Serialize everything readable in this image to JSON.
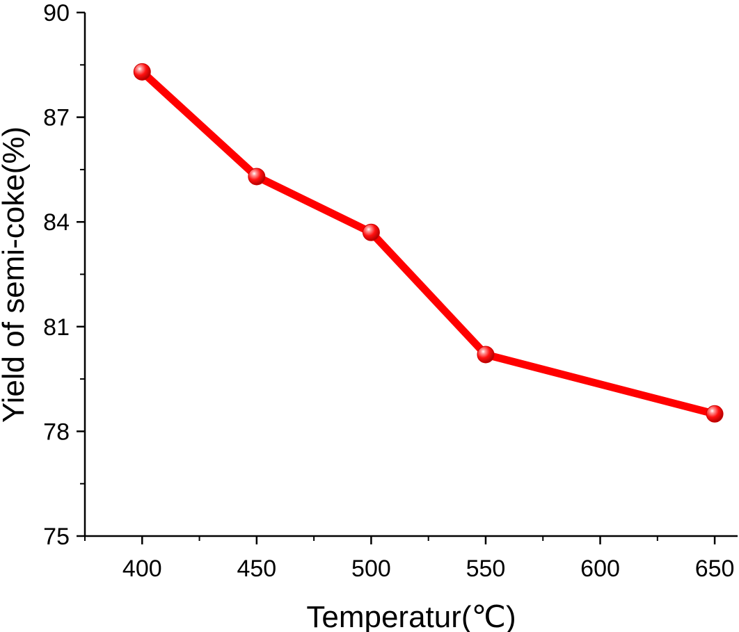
{
  "chart_data": {
    "type": "line",
    "xlabel": "Temperatur(℃)",
    "ylabel": "Yield of semi-coke(%)",
    "x": [
      400,
      450,
      500,
      550,
      600,
      650
    ],
    "xlim": [
      375,
      660
    ],
    "ylim": [
      75,
      90
    ],
    "x_ticks": [
      400,
      450,
      500,
      550,
      600,
      650
    ],
    "y_ticks": [
      75,
      78,
      81,
      84,
      87,
      90
    ],
    "series": [
      {
        "x": [
          400,
          450,
          500,
          550,
          650
        ],
        "y": [
          88.3,
          85.3,
          83.7,
          80.2,
          78.5
        ],
        "color": "#ff0000",
        "marker": "sphere"
      }
    ],
    "grid": false,
    "legend": "none"
  }
}
